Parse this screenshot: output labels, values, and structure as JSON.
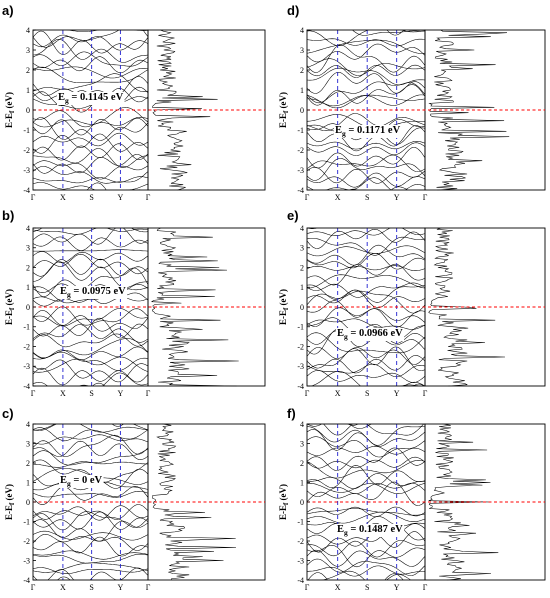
{
  "figure": {
    "colors": {
      "band": "#000000",
      "dos": "#000000",
      "fermi_line": "#ff0000",
      "k_line": "#2020d0",
      "frame": "#000000"
    }
  },
  "chart_data": [
    {
      "type": "line",
      "panel": "a)",
      "ylabel_main": "E-E",
      "ylabel_sub": "f",
      "ylabel_unit": " (eV)",
      "ylim": [
        -4,
        4
      ],
      "yticks": [
        "4",
        "3",
        "2",
        "1",
        "0",
        "-1",
        "-2",
        "-3",
        "-4"
      ],
      "kpoints": [
        "Γ",
        "X",
        "S",
        "Y",
        "Γ"
      ],
      "gap_label": "= 0.1145 eV",
      "gap_value_eV": 0.1145,
      "fermi_level": 0
    },
    {
      "type": "line",
      "panel": "b)",
      "ylabel_main": "E-E",
      "ylabel_sub": "f",
      "ylabel_unit": " (eV)",
      "ylim": [
        -4,
        4
      ],
      "yticks": [
        "4",
        "3",
        "2",
        "1",
        "0",
        "-1",
        "-2",
        "-3",
        "-4"
      ],
      "kpoints": [
        "Γ",
        "X",
        "S",
        "Y",
        "Γ"
      ],
      "gap_label": "= 0.0975 eV",
      "gap_value_eV": 0.0975,
      "fermi_level": 0
    },
    {
      "type": "line",
      "panel": "c)",
      "ylabel_main": "E-E",
      "ylabel_sub": "f",
      "ylabel_unit": " (eV)",
      "ylim": [
        -4,
        4
      ],
      "yticks": [
        "4",
        "3",
        "2",
        "1",
        "0",
        "-1",
        "-2",
        "-3",
        "-4"
      ],
      "kpoints": [
        "Γ",
        "X",
        "S",
        "Y",
        "Γ"
      ],
      "gap_label": "= 0 eV",
      "gap_value_eV": 0,
      "fermi_level": 0
    },
    {
      "type": "line",
      "panel": "d)",
      "ylabel_main": "E-E",
      "ylabel_sub": "f",
      "ylabel_unit": " (eV)",
      "ylim": [
        -4,
        4
      ],
      "yticks": [
        "4",
        "3",
        "2",
        "1",
        "0",
        "-1",
        "-2",
        "-3",
        "-4"
      ],
      "kpoints": [
        "Γ",
        "X",
        "S",
        "Y",
        "Γ"
      ],
      "gap_label": "= 0.1171 eV",
      "gap_value_eV": 0.1171,
      "fermi_level": 0
    },
    {
      "type": "line",
      "panel": "e)",
      "ylabel_main": "E-E",
      "ylabel_sub": "f",
      "ylabel_unit": " (eV)",
      "ylim": [
        -4,
        4
      ],
      "yticks": [
        "4",
        "3",
        "2",
        "1",
        "0",
        "-1",
        "-2",
        "-3",
        "-4"
      ],
      "kpoints": [
        "Γ",
        "X",
        "S",
        "Y",
        "Γ"
      ],
      "gap_label": "= 0.0966 eV",
      "gap_value_eV": 0.0966,
      "fermi_level": 0
    },
    {
      "type": "line",
      "panel": "f)",
      "ylabel_main": "E-E",
      "ylabel_sub": "f",
      "ylabel_unit": " (eV)",
      "ylim": [
        -4,
        4
      ],
      "yticks": [
        "4",
        "3",
        "2",
        "1",
        "0",
        "-1",
        "-2",
        "-3",
        "-4"
      ],
      "kpoints": [
        "Γ",
        "X",
        "S",
        "Y",
        "Γ"
      ],
      "gap_label": "= 0.1487 eV",
      "gap_value_eV": 0.1487,
      "fermi_level": 0
    }
  ]
}
